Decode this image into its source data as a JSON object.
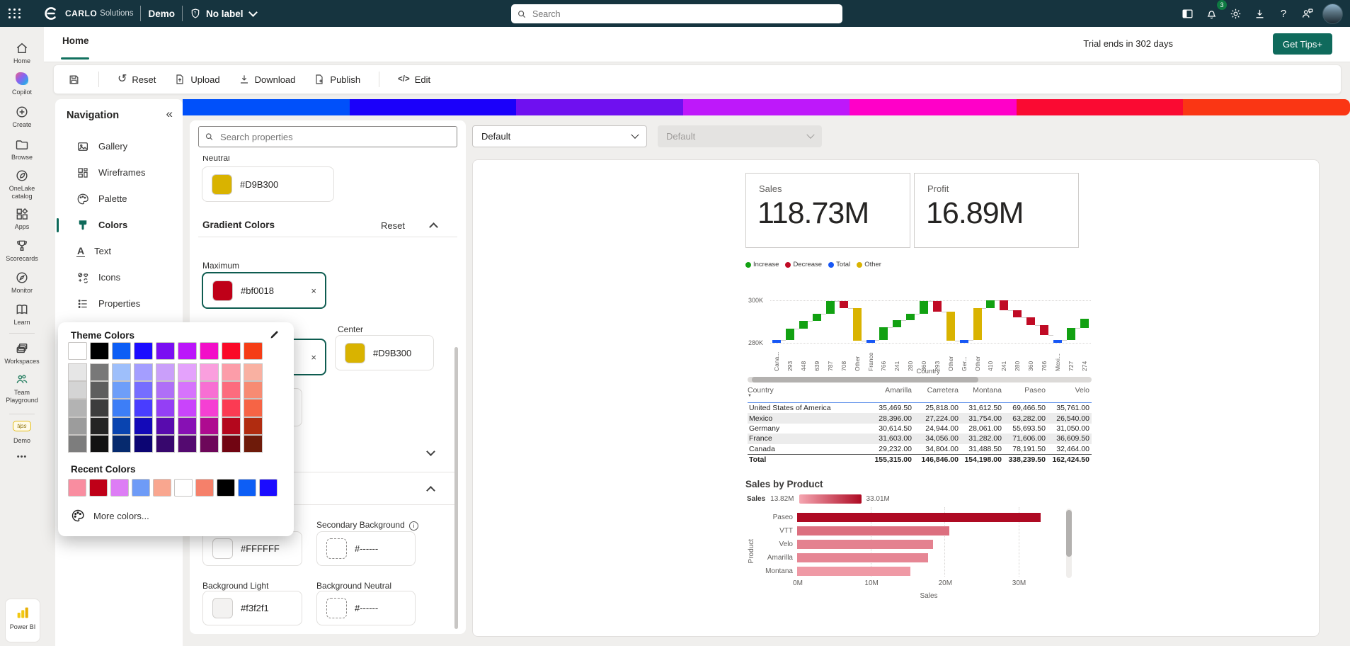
{
  "topbar": {
    "brand_bold": "CARLO",
    "brand_light": "Solutions",
    "workspace": "Demo",
    "sensitivity_label": "No label",
    "search_placeholder": "Search",
    "notification_count": "3"
  },
  "tabbar": {
    "active_tab": "Home",
    "trial": "Trial ends in 302 days",
    "cta": "Get Tips+"
  },
  "toolbar": {
    "reset": "Reset",
    "upload": "Upload",
    "download": "Download",
    "publish": "Publish",
    "edit": "Edit"
  },
  "icons": {
    "collapse": "«",
    "close": "×",
    "reset": "↺",
    "edit_code": "</>",
    "ellipsis": "•••",
    "sort_desc": "▼",
    "help": "?",
    "info": "i",
    "tips": "tips"
  },
  "rail": {
    "items": [
      {
        "id": "home",
        "label": "Home"
      },
      {
        "id": "copilot",
        "label": "Copilot"
      },
      {
        "id": "create",
        "label": "Create"
      },
      {
        "id": "browse",
        "label": "Browse"
      },
      {
        "id": "onelake",
        "label": "OneLake catalog"
      },
      {
        "id": "apps",
        "label": "Apps"
      },
      {
        "id": "scorecards",
        "label": "Scorecards"
      },
      {
        "id": "monitor",
        "label": "Monitor"
      },
      {
        "id": "learn",
        "label": "Learn"
      },
      {
        "id": "workspaces",
        "label": "Workspaces"
      },
      {
        "id": "team",
        "label": "Team Playground"
      },
      {
        "id": "demo",
        "label": "Demo"
      }
    ],
    "power_bi": "Power BI"
  },
  "nav": {
    "title": "Navigation",
    "items": [
      {
        "id": "gallery",
        "label": "Gallery"
      },
      {
        "id": "wireframes",
        "label": "Wireframes"
      },
      {
        "id": "palette",
        "label": "Palette"
      },
      {
        "id": "colors",
        "label": "Colors",
        "active": true
      },
      {
        "id": "text",
        "label": "Text"
      },
      {
        "id": "icons",
        "label": "Icons"
      },
      {
        "id": "properties",
        "label": "Properties"
      }
    ]
  },
  "properties": {
    "search_placeholder": "Search properties",
    "neutral": {
      "label": "Neutral",
      "value": "#D9B300",
      "color": "#D9B300"
    },
    "gradient": {
      "title": "Gradient Colors",
      "reset": "Reset",
      "maximum": {
        "label": "Maximum",
        "value": "#bf0018",
        "color": "#bf0018"
      },
      "center": {
        "label": "Center",
        "value": "#D9B300",
        "color": "#D9B300"
      }
    },
    "backgrounds": {
      "primary": {
        "value": "#FFFFFF",
        "color": "#FFFFFF"
      },
      "secondary": {
        "label": "Secondary Background",
        "value": "#------"
      },
      "light": {
        "label": "Background Light",
        "value": "#f3f2f1",
        "color": "#f3f2f1"
      },
      "neutral": {
        "label": "Background Neutral",
        "value": "#------"
      }
    }
  },
  "picker": {
    "title": "Theme Colors",
    "recent_title": "Recent Colors",
    "more": "More colors...",
    "base_row": [
      "#FFFFFF",
      "#000000",
      "#0D5EF5",
      "#1B0CFF",
      "#7A0FF2",
      "#BB16FA",
      "#F20FC8",
      "#FA0A28",
      "#F53D16"
    ],
    "grid": [
      [
        "#E6E6E6",
        "#787878",
        "#9EBFFB",
        "#A49EFF",
        "#CA9FFA",
        "#E4A2FC",
        "#FA9FDE",
        "#FC9DA9",
        "#F9B1A2"
      ],
      [
        "#D4D4D4",
        "#5E5E5E",
        "#6E9EF9",
        "#766DFF",
        "#AF6FF7",
        "#D673FC",
        "#F76FD3",
        "#FC6C7E",
        "#F78B73"
      ],
      [
        "#B3B3B3",
        "#3D3D3D",
        "#3D7EF7",
        "#493DFF",
        "#943FF5",
        "#C944FB",
        "#F53FD3",
        "#FB3B53",
        "#F66445"
      ],
      [
        "#9C9C9C",
        "#242424",
        "#0944B0",
        "#1309B8",
        "#580BAE",
        "#8710B4",
        "#AE0B90",
        "#B4071D",
        "#B02C10"
      ],
      [
        "#7D7D7D",
        "#121212",
        "#062A6E",
        "#0C0573",
        "#37076D",
        "#540A70",
        "#6D075A",
        "#710512",
        "#6E1B0A"
      ]
    ],
    "recent": [
      "#F98DA0",
      "#BF0018",
      "#DD7DF5",
      "#6E9BF7",
      "#F9A68F",
      "#FFFFFF",
      "#F5806A",
      "#000000",
      "#0D5EF5",
      "#1B0CFF"
    ]
  },
  "dropdowns": {
    "primary": "Default",
    "secondary": "Default"
  },
  "gradient_strip": [
    "#0050FA",
    "#1B00FA",
    "#6F10F0",
    "#BE18FA",
    "#FF00C8",
    "#FA0A32",
    "#FA3614"
  ],
  "report": {
    "cards": [
      {
        "label": "Sales",
        "value": "118.73M"
      },
      {
        "label": "Profit",
        "value": "16.89M"
      }
    ]
  },
  "chart_data": [
    {
      "type": "waterfall",
      "xlabel": "Country",
      "ylim": [
        280,
        302
      ],
      "yticks": [
        {
          "label": "300K",
          "value": 300
        },
        {
          "label": "280K",
          "value": 280
        }
      ],
      "legend": [
        {
          "name": "Increase",
          "color": "#12A112"
        },
        {
          "name": "Decrease",
          "color": "#C00B25"
        },
        {
          "name": "Total",
          "color": "#1757F5"
        },
        {
          "name": "Other",
          "color": "#D9B300"
        }
      ],
      "bars": [
        {
          "label": "Cana...",
          "kind": "total",
          "from": 280,
          "to": 281.3
        },
        {
          "label": "293",
          "kind": "increase",
          "from": 281.3,
          "to": 286.8
        },
        {
          "label": "448",
          "kind": "increase",
          "from": 286.8,
          "to": 290.2
        },
        {
          "label": "639",
          "kind": "increase",
          "from": 290.2,
          "to": 293.8
        },
        {
          "label": "787",
          "kind": "increase",
          "from": 293.8,
          "to": 299.8
        },
        {
          "label": "708",
          "kind": "decrease",
          "from": 299.8,
          "to": 296.2
        },
        {
          "label": "Other",
          "kind": "other",
          "from": 296.2,
          "to": 280.9
        },
        {
          "label": "France",
          "kind": "total",
          "from": 280,
          "to": 281.3
        },
        {
          "label": "766",
          "kind": "increase",
          "from": 281.3,
          "to": 287.2
        },
        {
          "label": "241",
          "kind": "increase",
          "from": 287.2,
          "to": 290.6
        },
        {
          "label": "280",
          "kind": "increase",
          "from": 290.6,
          "to": 293.6
        },
        {
          "label": "360",
          "kind": "increase",
          "from": 293.6,
          "to": 299.6
        },
        {
          "label": "293",
          "kind": "decrease",
          "from": 299.6,
          "to": 294.7
        },
        {
          "label": "Other",
          "kind": "other",
          "from": 294.7,
          "to": 280.9
        },
        {
          "label": "Ger...",
          "kind": "total",
          "from": 280,
          "to": 281.3
        },
        {
          "label": "Other",
          "kind": "other",
          "from": 281.3,
          "to": 296.2
        },
        {
          "label": "410",
          "kind": "increase",
          "from": 296.2,
          "to": 299.9
        },
        {
          "label": "241",
          "kind": "decrease",
          "from": 299.9,
          "to": 295.3
        },
        {
          "label": "280",
          "kind": "decrease",
          "from": 295.3,
          "to": 292.1
        },
        {
          "label": "360",
          "kind": "decrease",
          "from": 292.1,
          "to": 288.2
        },
        {
          "label": "766",
          "kind": "decrease",
          "from": 288.2,
          "to": 283.8
        },
        {
          "label": "Mexi...",
          "kind": "total",
          "from": 280,
          "to": 281.3
        },
        {
          "label": "727",
          "kind": "increase",
          "from": 281.3,
          "to": 287.0
        },
        {
          "label": "274",
          "kind": "increase",
          "from": 287.0,
          "to": 291.3
        }
      ]
    },
    {
      "type": "table",
      "columns": [
        "Country",
        "Amarilla",
        "Carretera",
        "Montana",
        "Paseo",
        "Velo"
      ],
      "sort_column": "Country",
      "rows": [
        [
          "United States of America",
          "35,469.50",
          "25,818.00",
          "31,612.50",
          "69,466.50",
          "35,761.00"
        ],
        [
          "Mexico",
          "28,396.00",
          "27,224.00",
          "31,754.00",
          "63,282.00",
          "26,540.00"
        ],
        [
          "Germany",
          "30,614.50",
          "24,944.00",
          "28,061.00",
          "55,693.50",
          "31,050.00"
        ],
        [
          "France",
          "31,603.00",
          "34,056.00",
          "31,282.00",
          "71,606.00",
          "36,609.50"
        ],
        [
          "Canada",
          "29,232.00",
          "34,804.00",
          "31,488.50",
          "78,191.50",
          "32,464.00"
        ]
      ],
      "total": [
        "Total",
        "155,315.00",
        "146,846.00",
        "154,198.00",
        "338,239.50",
        "162,424.50"
      ]
    },
    {
      "type": "bar",
      "title": "Sales by Product",
      "categories": [
        "Paseo",
        "VTT",
        "Velo",
        "Amarilla",
        "Montana"
      ],
      "values": [
        33.01,
        20.6,
        18.4,
        17.8,
        15.4
      ],
      "xlabel": "Sales",
      "ylabel": "Product",
      "xticks": [
        "0M",
        "10M",
        "20M",
        "30M"
      ],
      "xlim": [
        0,
        36
      ],
      "legend": {
        "series": "Sales",
        "min_label": "13.82M",
        "max_label": "33.01M",
        "min_color": "#F5A6B1",
        "max_color": "#AE0A23"
      }
    }
  ]
}
